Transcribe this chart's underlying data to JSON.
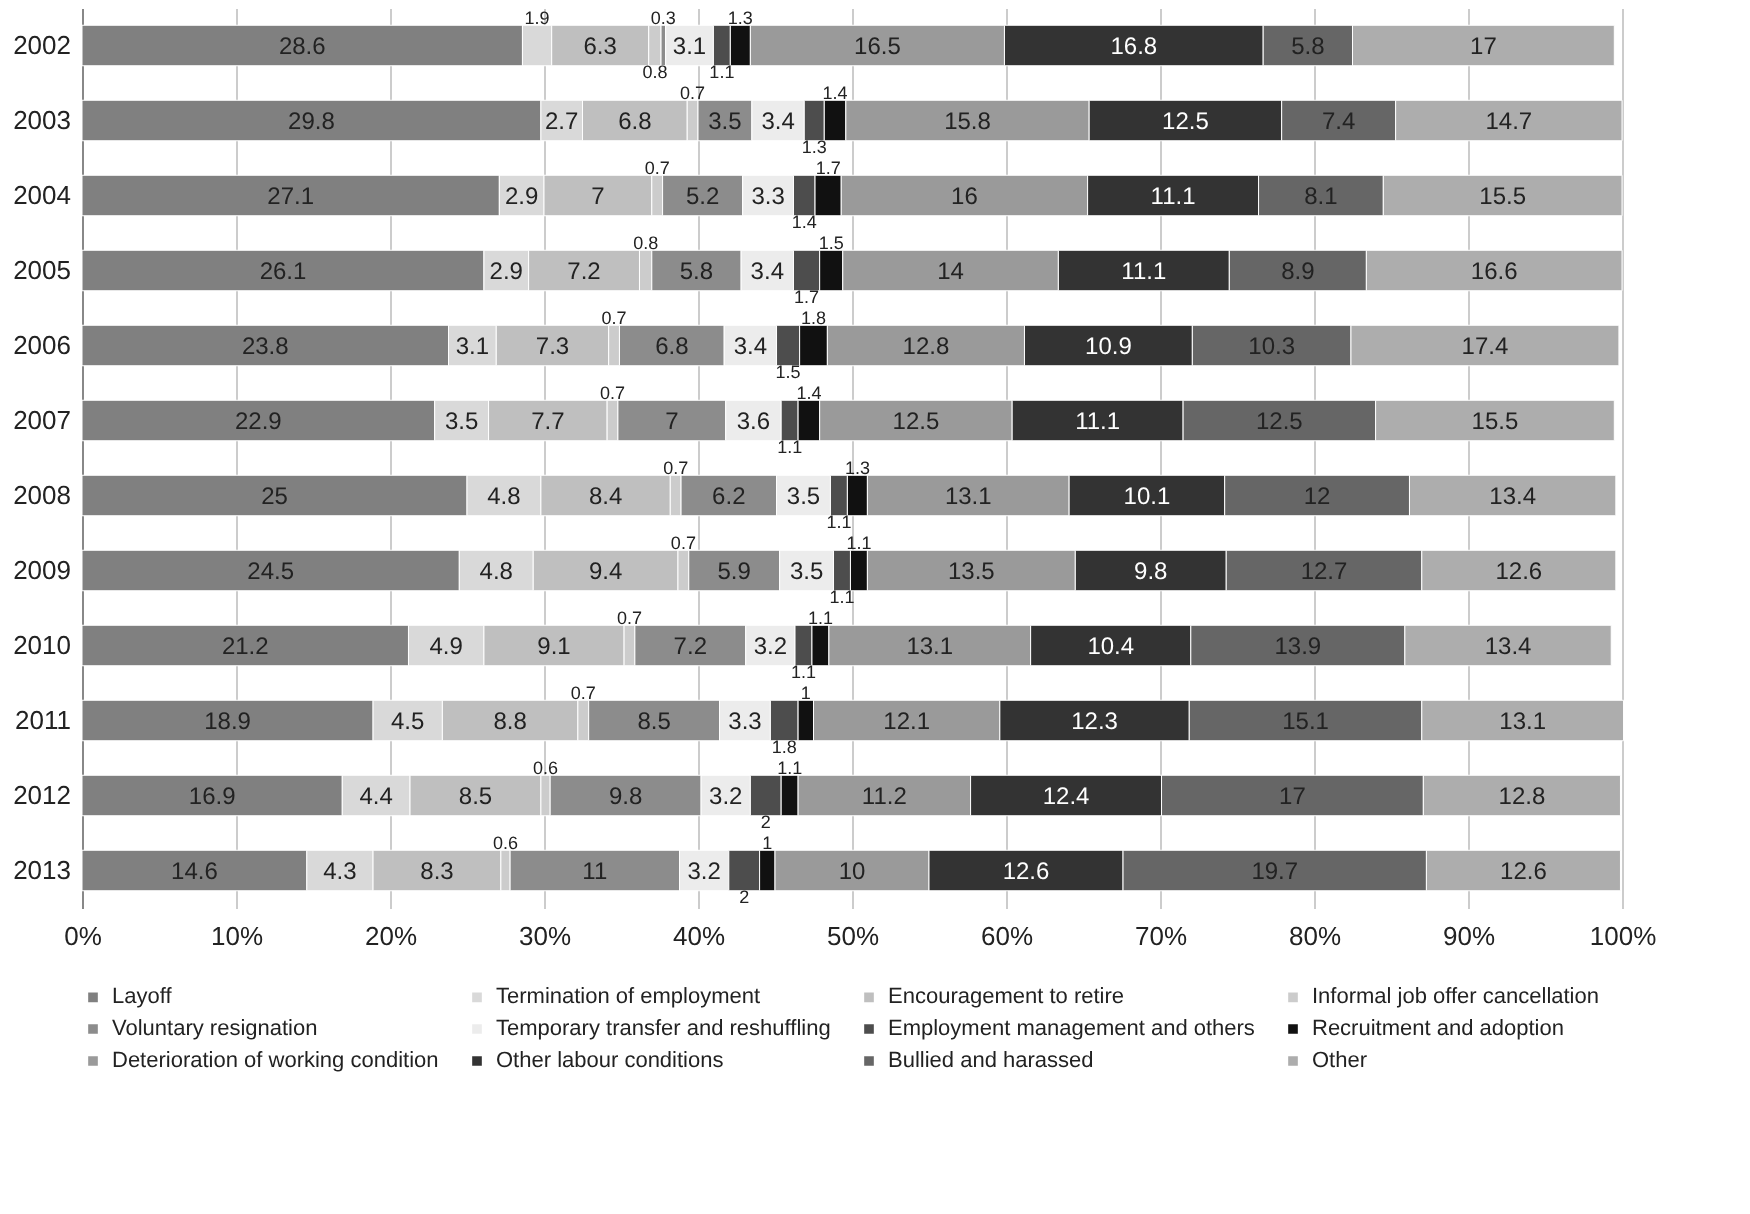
{
  "chart_data": {
    "type": "bar",
    "orientation": "horizontal",
    "stacked": true,
    "data_labels": true,
    "grid": "x",
    "legend": "bottom",
    "categories": [
      "2002",
      "2003",
      "2004",
      "2005",
      "2006",
      "2007",
      "2008",
      "2009",
      "2010",
      "2011",
      "2012",
      "2013"
    ],
    "xlim": [
      0,
      100
    ],
    "xticks": [
      {
        "value": 0,
        "label": "0%"
      },
      {
        "value": 10,
        "label": "10%"
      },
      {
        "value": 20,
        "label": "20%"
      },
      {
        "value": 30,
        "label": "30%"
      },
      {
        "value": 40,
        "label": "40%"
      },
      {
        "value": 50,
        "label": "50%"
      },
      {
        "value": 60,
        "label": "60%"
      },
      {
        "value": 70,
        "label": "70%"
      },
      {
        "value": 80,
        "label": "80%"
      },
      {
        "value": 90,
        "label": "90%"
      },
      {
        "value": 100,
        "label": "100%"
      }
    ],
    "series": [
      {
        "name": "Layoff",
        "color": "#808080",
        "values": [
          28.6,
          29.8,
          27.1,
          26.1,
          23.8,
          22.9,
          25,
          24.5,
          21.2,
          18.9,
          16.9,
          14.6
        ]
      },
      {
        "name": "Termination of employment",
        "color": "#d9d9d9",
        "values": [
          1.9,
          2.7,
          2.9,
          2.9,
          3.1,
          3.5,
          4.8,
          4.8,
          4.9,
          4.5,
          4.4,
          4.3
        ]
      },
      {
        "name": "Encouragement to retire",
        "color": "#bfbfbf",
        "values": [
          6.3,
          6.8,
          7,
          7.2,
          7.3,
          7.7,
          8.4,
          9.4,
          9.1,
          8.8,
          8.5,
          8.3
        ]
      },
      {
        "name": "Informal job offer cancellation",
        "color": "#cccccc",
        "values": [
          0.8,
          0.7,
          0.7,
          0.8,
          0.7,
          0.7,
          0.7,
          0.7,
          0.7,
          0.7,
          0.6,
          0.6
        ]
      },
      {
        "name": "Voluntary resignation",
        "color": "#8c8c8c",
        "values": [
          0.3,
          3.5,
          5.2,
          5.8,
          6.8,
          7,
          6.2,
          5.9,
          7.2,
          8.5,
          9.8,
          11
        ]
      },
      {
        "name": "Temporary transfer and reshuffling",
        "color": "#ececec",
        "values": [
          3.1,
          3.4,
          3.3,
          3.4,
          3.4,
          3.6,
          3.5,
          3.5,
          3.2,
          3.3,
          3.2,
          3.2
        ]
      },
      {
        "name": "Employment management and others",
        "color": "#4d4d4d",
        "values": [
          1.1,
          1.3,
          1.4,
          1.7,
          1.5,
          1.1,
          1.1,
          1.1,
          1.1,
          1.8,
          2,
          2
        ]
      },
      {
        "name": "Recruitment and adoption",
        "color": "#111111",
        "values": [
          1.3,
          1.4,
          1.7,
          1.5,
          1.8,
          1.4,
          1.3,
          1.1,
          1.1,
          1,
          1.1,
          1
        ]
      },
      {
        "name": "Deterioration of working condition",
        "color": "#9a9a9a",
        "values": [
          16.5,
          15.8,
          16,
          14,
          12.8,
          12.5,
          13.1,
          13.5,
          13.1,
          12.1,
          11.2,
          10
        ]
      },
      {
        "name": "Other labour conditions",
        "color": "#333333",
        "values": [
          16.8,
          12.5,
          11.1,
          11.1,
          10.9,
          11.1,
          10.1,
          9.8,
          10.4,
          12.3,
          12.4,
          12.6
        ]
      },
      {
        "name": "Bullied and harassed",
        "color": "#666666",
        "values": [
          5.8,
          7.4,
          8.1,
          8.9,
          10.3,
          12.5,
          12,
          12.7,
          13.9,
          15.1,
          17,
          19.7
        ]
      },
      {
        "name": "Other",
        "color": "#adadad",
        "values": [
          17,
          14.7,
          15.5,
          16.6,
          17.4,
          15.5,
          13.4,
          12.6,
          13.4,
          13.1,
          12.8,
          12.6
        ]
      }
    ]
  }
}
